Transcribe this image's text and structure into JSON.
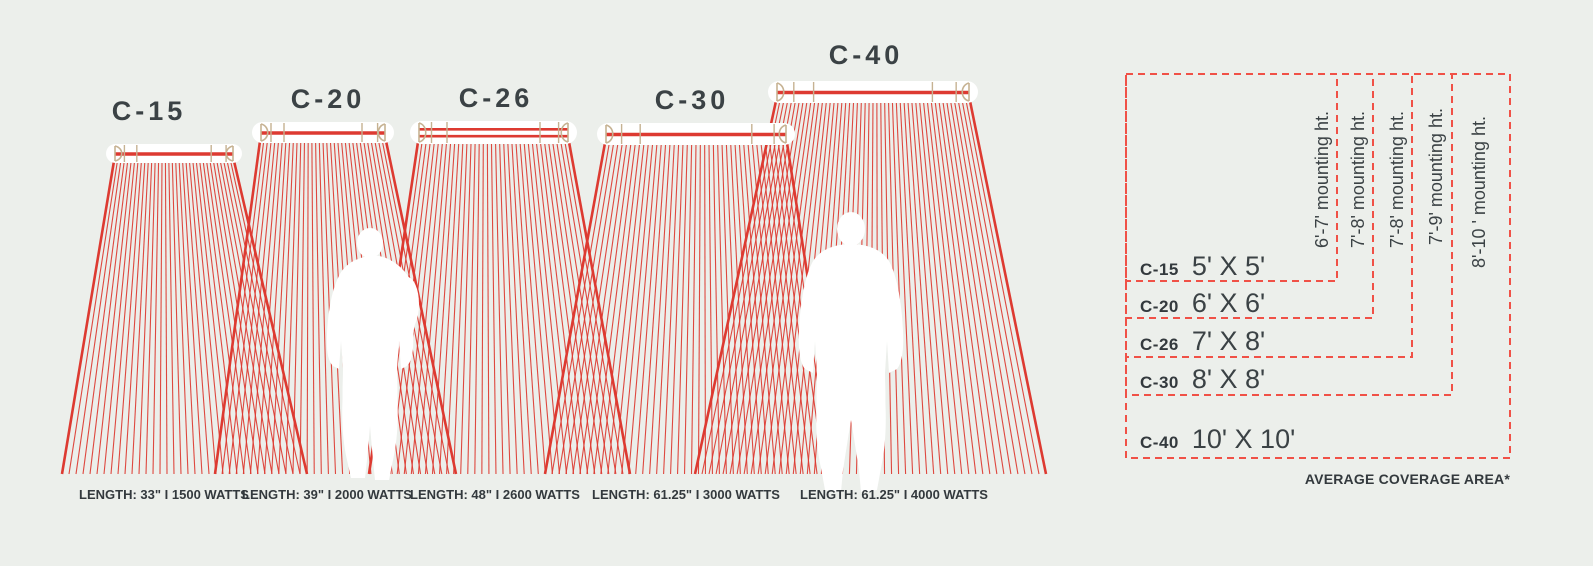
{
  "palette": {
    "red": "#dd3a31",
    "dash_red": "#f05147",
    "tan": "#c6b292",
    "ink": "#3b4245",
    "bg": "#ecefeb",
    "white": "#ffffff"
  },
  "heaters": [
    {
      "model": "C-15",
      "spec": "LENGTH: 33\" I 1500 WATTS",
      "coverage": "5' X 5'",
      "mounting": "6'-7' mounting ht."
    },
    {
      "model": "C-20",
      "spec": "LENGTH: 39\" I 2000 WATTS",
      "coverage": "6' X 6'",
      "mounting": "7'-8' mounting ht."
    },
    {
      "model": "C-26",
      "spec": "LENGTH: 48\" I 2600 WATTS",
      "coverage": "7' X 8'",
      "mounting": "7'-8' mounting ht."
    },
    {
      "model": "C-30",
      "spec": "LENGTH: 61.25\" I 3000 WATTS",
      "coverage": "8' X 8'",
      "mounting": "7'-9' mounting ht."
    },
    {
      "model": "C-40",
      "spec": "LENGTH: 61.25\" I 4000 WATTS",
      "coverage": "10' X 10'",
      "mounting": "8'-10 ' mounting ht."
    }
  ],
  "coverage_table": {
    "footnote": "AVERAGE COVERAGE AREA*"
  }
}
